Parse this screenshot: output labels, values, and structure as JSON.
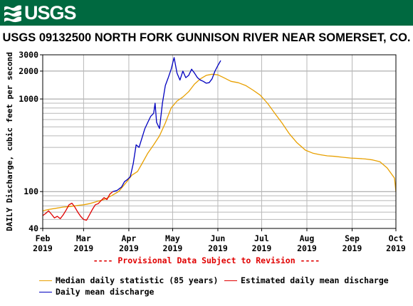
{
  "header": {
    "logo_text": "USGS",
    "logo_icon": "usgs-wave-icon",
    "banner_color": "#006940"
  },
  "chart_data": {
    "type": "line",
    "title": "USGS 09132500 NORTH FORK GUNNISON RIVER NEAR SOMERSET, CO.",
    "ylabel": "DAILY Discharge, cubic feet per second",
    "xlabel": "",
    "y_scale": "log",
    "ylim": [
      40,
      3000
    ],
    "y_ticks": [
      {
        "value": 40,
        "label": "40"
      },
      {
        "value": 100,
        "label": "100"
      },
      {
        "value": 1000,
        "label": "1000"
      },
      {
        "value": 2000,
        "label": "2000"
      },
      {
        "value": 3000,
        "label": "3000"
      }
    ],
    "y_minor": [
      50,
      60,
      70,
      80,
      90,
      200,
      300,
      400,
      500,
      600,
      700,
      800,
      900
    ],
    "x_ticks": [
      {
        "month": "Feb",
        "year": "2019",
        "date": "2019-02-01"
      },
      {
        "month": "Mar",
        "year": "2019",
        "date": "2019-03-01"
      },
      {
        "month": "Apr",
        "year": "2019",
        "date": "2019-04-01"
      },
      {
        "month": "May",
        "year": "2019",
        "date": "2019-05-01"
      },
      {
        "month": "Jun",
        "year": "2019",
        "date": "2019-06-01"
      },
      {
        "month": "Jul",
        "year": "2019",
        "date": "2019-07-01"
      },
      {
        "month": "Aug",
        "year": "2019",
        "date": "2019-08-01"
      },
      {
        "month": "Sep",
        "year": "2019",
        "date": "2019-09-01"
      },
      {
        "month": "Oct",
        "year": "2019",
        "date": "2019-10-01"
      }
    ],
    "xlim": [
      "2019-02-01",
      "2019-10-01"
    ],
    "grid": true,
    "legend_position": "bottom",
    "series": [
      {
        "name": "Median daily statistic (85 years)",
        "color": "#e8a000",
        "points": [
          [
            "2019-02-01",
            62
          ],
          [
            "2019-02-05",
            64
          ],
          [
            "2019-02-10",
            66
          ],
          [
            "2019-02-15",
            68
          ],
          [
            "2019-02-20",
            69
          ],
          [
            "2019-02-25",
            71
          ],
          [
            "2019-03-01",
            72
          ],
          [
            "2019-03-05",
            74
          ],
          [
            "2019-03-10",
            78
          ],
          [
            "2019-03-15",
            82
          ],
          [
            "2019-03-20",
            90
          ],
          [
            "2019-03-25",
            100
          ],
          [
            "2019-03-31",
            130
          ],
          [
            "2019-04-03",
            150
          ],
          [
            "2019-04-07",
            165
          ],
          [
            "2019-04-10",
            200
          ],
          [
            "2019-04-14",
            260
          ],
          [
            "2019-04-18",
            320
          ],
          [
            "2019-04-22",
            400
          ],
          [
            "2019-04-26",
            550
          ],
          [
            "2019-04-30",
            800
          ],
          [
            "2019-05-04",
            950
          ],
          [
            "2019-05-08",
            1050
          ],
          [
            "2019-05-12",
            1200
          ],
          [
            "2019-05-16",
            1450
          ],
          [
            "2019-05-20",
            1650
          ],
          [
            "2019-05-24",
            1800
          ],
          [
            "2019-05-28",
            1850
          ],
          [
            "2019-06-01",
            1820
          ],
          [
            "2019-06-05",
            1700
          ],
          [
            "2019-06-10",
            1550
          ],
          [
            "2019-06-15",
            1500
          ],
          [
            "2019-06-20",
            1400
          ],
          [
            "2019-06-25",
            1250
          ],
          [
            "2019-06-30",
            1100
          ],
          [
            "2019-07-05",
            900
          ],
          [
            "2019-07-10",
            700
          ],
          [
            "2019-07-15",
            550
          ],
          [
            "2019-07-20",
            420
          ],
          [
            "2019-07-25",
            340
          ],
          [
            "2019-07-31",
            280
          ],
          [
            "2019-08-05",
            260
          ],
          [
            "2019-08-10",
            250
          ],
          [
            "2019-08-15",
            243
          ],
          [
            "2019-08-20",
            240
          ],
          [
            "2019-08-25",
            235
          ],
          [
            "2019-08-31",
            230
          ],
          [
            "2019-09-05",
            228
          ],
          [
            "2019-09-10",
            225
          ],
          [
            "2019-09-15",
            220
          ],
          [
            "2019-09-20",
            210
          ],
          [
            "2019-09-25",
            180
          ],
          [
            "2019-09-30",
            140
          ],
          [
            "2019-10-01",
            100
          ]
        ]
      },
      {
        "name": "Estimated daily mean discharge",
        "color": "#e00000",
        "points": [
          [
            "2019-02-01",
            55
          ],
          [
            "2019-02-03",
            58
          ],
          [
            "2019-02-05",
            62
          ],
          [
            "2019-02-07",
            57
          ],
          [
            "2019-02-09",
            52
          ],
          [
            "2019-02-11",
            54
          ],
          [
            "2019-02-13",
            51
          ],
          [
            "2019-02-15",
            56
          ],
          [
            "2019-02-17",
            63
          ],
          [
            "2019-02-19",
            72
          ],
          [
            "2019-02-21",
            75
          ],
          [
            "2019-02-23",
            68
          ],
          [
            "2019-02-25",
            60
          ],
          [
            "2019-02-27",
            54
          ],
          [
            "2019-03-01",
            50
          ],
          [
            "2019-03-03",
            49
          ],
          [
            "2019-03-05",
            56
          ],
          [
            "2019-03-07",
            64
          ],
          [
            "2019-03-09",
            72
          ],
          [
            "2019-03-11",
            74
          ],
          [
            "2019-03-13",
            80
          ],
          [
            "2019-03-15",
            86
          ],
          [
            "2019-03-17",
            82
          ],
          [
            "2019-03-19",
            94
          ],
          [
            "2019-03-21",
            100
          ]
        ]
      },
      {
        "name": "Daily mean discharge",
        "color": "#0000c0",
        "points": [
          [
            "2019-03-21",
            100
          ],
          [
            "2019-03-24",
            103
          ],
          [
            "2019-03-27",
            112
          ],
          [
            "2019-03-29",
            128
          ],
          [
            "2019-03-31",
            135
          ],
          [
            "2019-04-02",
            145
          ],
          [
            "2019-04-04",
            200
          ],
          [
            "2019-04-06",
            320
          ],
          [
            "2019-04-08",
            300
          ],
          [
            "2019-04-10",
            380
          ],
          [
            "2019-04-12",
            480
          ],
          [
            "2019-04-14",
            560
          ],
          [
            "2019-04-16",
            650
          ],
          [
            "2019-04-18",
            700
          ],
          [
            "2019-04-19",
            900
          ],
          [
            "2019-04-20",
            560
          ],
          [
            "2019-04-22",
            480
          ],
          [
            "2019-04-24",
            900
          ],
          [
            "2019-04-26",
            1400
          ],
          [
            "2019-04-28",
            1700
          ],
          [
            "2019-04-30",
            2100
          ],
          [
            "2019-05-02",
            2800
          ],
          [
            "2019-05-04",
            1900
          ],
          [
            "2019-05-06",
            1600
          ],
          [
            "2019-05-08",
            2000
          ],
          [
            "2019-05-10",
            1700
          ],
          [
            "2019-05-12",
            1800
          ],
          [
            "2019-05-14",
            2100
          ],
          [
            "2019-05-16",
            1900
          ],
          [
            "2019-05-18",
            1700
          ],
          [
            "2019-05-20",
            1600
          ],
          [
            "2019-05-22",
            1550
          ],
          [
            "2019-05-24",
            1480
          ],
          [
            "2019-05-26",
            1500
          ],
          [
            "2019-05-28",
            1650
          ],
          [
            "2019-05-30",
            2000
          ],
          [
            "2019-06-01",
            2300
          ],
          [
            "2019-06-03",
            2600
          ]
        ]
      }
    ],
    "footnote": "---- Provisional Data Subject to Revision ----"
  }
}
